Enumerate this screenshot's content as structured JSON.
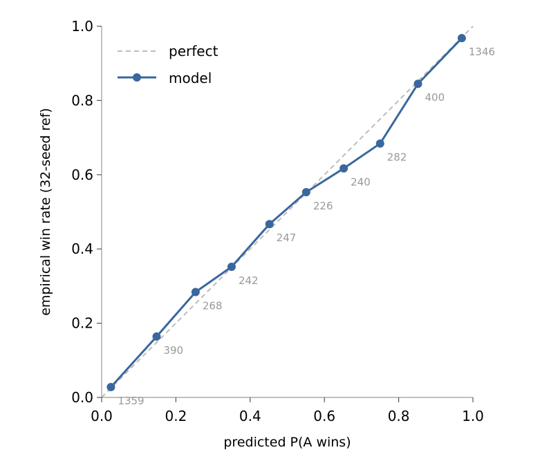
{
  "chart_data": {
    "type": "line",
    "title": "",
    "xlabel": "predicted P(A wins)",
    "ylabel": "empirical win rate (32-seed ref)",
    "xlim": [
      0.0,
      1.0
    ],
    "ylim": [
      0.0,
      1.0
    ],
    "xticks": [
      "0.0",
      "0.2",
      "0.4",
      "0.6",
      "0.8",
      "1.0"
    ],
    "yticks": [
      "0.0",
      "0.2",
      "0.4",
      "0.6",
      "0.8",
      "1.0"
    ],
    "grid": false,
    "legend_position": "top-left",
    "series": [
      {
        "name": "perfect",
        "style": "dashed",
        "color": "#bbbbbb",
        "x": [
          0.0,
          1.0
        ],
        "y": [
          0.0,
          1.0
        ]
      },
      {
        "name": "model",
        "style": "solid-with-markers",
        "color": "#3a679d",
        "x": [
          0.025,
          0.148,
          0.253,
          0.35,
          0.452,
          0.551,
          0.652,
          0.75,
          0.852,
          0.97
        ],
        "y": [
          0.028,
          0.164,
          0.284,
          0.352,
          0.467,
          0.553,
          0.617,
          0.684,
          0.845,
          0.968
        ],
        "counts": [
          "1359",
          "390",
          "268",
          "242",
          "247",
          "226",
          "240",
          "282",
          "400",
          "1346"
        ]
      }
    ]
  }
}
